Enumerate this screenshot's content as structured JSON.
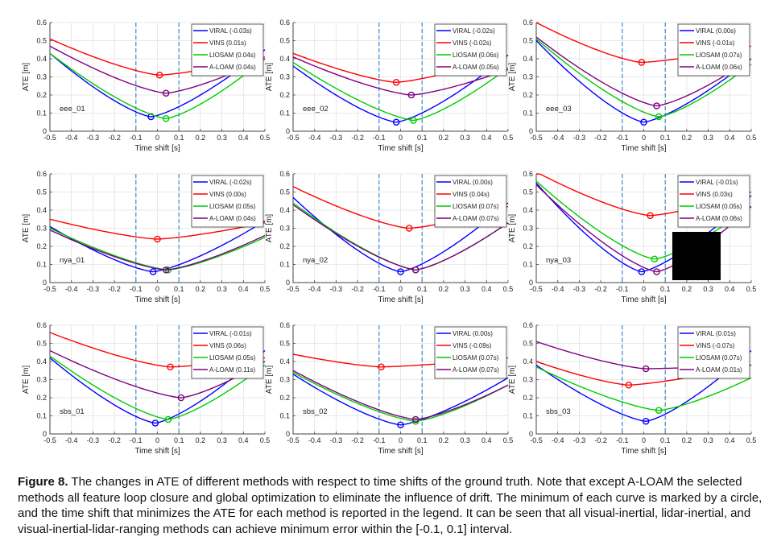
{
  "x_ticks": [
    "-0.5",
    "-0.4",
    "-0.3",
    "-0.2",
    "-0.1",
    "0",
    "0.1",
    "0.2",
    "0.3",
    "0.4",
    "0.5"
  ],
  "y_ticks": [
    "0",
    "0.1",
    "0.2",
    "0.3",
    "0.4",
    "0.5",
    "0.6"
  ],
  "colors": {
    "VIRAL": "#0000ff",
    "VINS": "#ff0000",
    "LIOSAM": "#00cc00",
    "A-LOAM": "#800080",
    "guide": "#2a7fd0"
  },
  "caption": {
    "label": "Figure 8.",
    "text": "The changes in ATE of different methods with respect to time shifts of the ground truth. Note that except A-LOAM the selected methods all feature loop closure and global optimization to eliminate the influence of drift. The minimum of each curve is marked by a circle, and the time shift that minimizes the ATE for each method is reported in the legend. It can be seen that all visual-inertial, lidar-inertial, and visual-inertial-lidar-ranging methods can achieve minimum error within the [-0.1, 0.1] interval."
  },
  "chart_data": [
    {
      "type": "line",
      "title": "eee_01",
      "xlabel": "Time shift [s]",
      "ylabel": "ATE [m]",
      "xlim": [
        -0.5,
        0.5
      ],
      "ylim": [
        0,
        0.6
      ],
      "guides": [
        -0.1,
        0.1
      ],
      "series": [
        {
          "name": "VIRAL",
          "legend": "VIRAL (-0.03s)",
          "min_x": -0.03,
          "min_y": 0.08,
          "y_at_-0.5": 0.43,
          "y_at_0.5": 0.45
        },
        {
          "name": "VINS",
          "legend": "VINS (0.01s)",
          "min_x": 0.01,
          "min_y": 0.31,
          "y_at_-0.5": 0.51,
          "y_at_0.5": 0.41
        },
        {
          "name": "LIOSAM",
          "legend": "LIOSAM (0.04s)",
          "min_x": 0.04,
          "min_y": 0.07,
          "y_at_-0.5": 0.43,
          "y_at_0.5": 0.4
        },
        {
          "name": "A-LOAM",
          "legend": "A-LOAM (0.04s)",
          "min_x": 0.04,
          "min_y": 0.21,
          "y_at_-0.5": 0.47,
          "y_at_0.5": 0.4
        }
      ]
    },
    {
      "type": "line",
      "title": "eee_02",
      "xlabel": "Time shift [s]",
      "ylabel": "ATE [m]",
      "xlim": [
        -0.5,
        0.5
      ],
      "ylim": [
        0,
        0.6
      ],
      "guides": [
        -0.1,
        0.1
      ],
      "series": [
        {
          "name": "VIRAL",
          "legend": "VIRAL (-0.02s)",
          "min_x": -0.02,
          "min_y": 0.05,
          "y_at_-0.5": 0.36,
          "y_at_0.5": 0.42
        },
        {
          "name": "VINS",
          "legend": "VINS (-0.02s)",
          "min_x": -0.02,
          "min_y": 0.27,
          "y_at_-0.5": 0.43,
          "y_at_0.5": 0.42
        },
        {
          "name": "LIOSAM",
          "legend": "LIOSAM (0.06s)",
          "min_x": 0.06,
          "min_y": 0.06,
          "y_at_-0.5": 0.38,
          "y_at_0.5": 0.35
        },
        {
          "name": "A-LOAM",
          "legend": "A-LOAM (0.05s)",
          "min_x": 0.05,
          "min_y": 0.2,
          "y_at_-0.5": 0.41,
          "y_at_0.5": 0.34
        }
      ]
    },
    {
      "type": "line",
      "title": "eee_03",
      "xlabel": "Time shift [s]",
      "ylabel": "ATE [m]",
      "xlim": [
        -0.5,
        0.5
      ],
      "ylim": [
        0,
        0.6
      ],
      "guides": [
        -0.1,
        0.1
      ],
      "series": [
        {
          "name": "VIRAL",
          "legend": "VIRAL (0.00s)",
          "min_x": 0.0,
          "min_y": 0.05,
          "y_at_-0.5": 0.5,
          "y_at_0.5": 0.4
        },
        {
          "name": "VINS",
          "legend": "VINS (-0.01s)",
          "min_x": -0.01,
          "min_y": 0.38,
          "y_at_-0.5": 0.6,
          "y_at_0.5": 0.47
        },
        {
          "name": "LIOSAM",
          "legend": "LIOSAM (0.07s)",
          "min_x": 0.07,
          "min_y": 0.08,
          "y_at_-0.5": 0.51,
          "y_at_0.5": 0.37
        },
        {
          "name": "A-LOAM",
          "legend": "A-LOAM (0.06s)",
          "min_x": 0.06,
          "min_y": 0.14,
          "y_at_-0.5": 0.52,
          "y_at_0.5": 0.4
        }
      ]
    },
    {
      "type": "line",
      "title": "nya_01",
      "xlabel": "Time shift [s]",
      "ylabel": "ATE [m]",
      "xlim": [
        -0.5,
        0.5
      ],
      "ylim": [
        0,
        0.6
      ],
      "guides": [
        -0.1,
        0.1
      ],
      "series": [
        {
          "name": "VIRAL",
          "legend": "VIRAL (-0.02s)",
          "min_x": -0.02,
          "min_y": 0.06,
          "y_at_-0.5": 0.31,
          "y_at_0.5": 0.34
        },
        {
          "name": "VINS",
          "legend": "VINS (0.00s)",
          "min_x": 0.0,
          "min_y": 0.24,
          "y_at_-0.5": 0.35,
          "y_at_0.5": 0.33
        },
        {
          "name": "LIOSAM",
          "legend": "LIOSAM (0.05s)",
          "min_x": 0.05,
          "min_y": 0.07,
          "y_at_-0.5": 0.3,
          "y_at_0.5": 0.25
        },
        {
          "name": "A-LOAM",
          "legend": "A-LOAM (0.04s)",
          "min_x": 0.04,
          "min_y": 0.07,
          "y_at_-0.5": 0.29,
          "y_at_0.5": 0.26
        }
      ]
    },
    {
      "type": "line",
      "title": "nya_02",
      "xlabel": "Time shift [s]",
      "ylabel": "ATE [m]",
      "xlim": [
        -0.5,
        0.5
      ],
      "ylim": [
        0,
        0.6
      ],
      "guides": [
        -0.1,
        0.1
      ],
      "series": [
        {
          "name": "VIRAL",
          "legend": "VIRAL (0.00s)",
          "min_x": 0.0,
          "min_y": 0.06,
          "y_at_-0.5": 0.47,
          "y_at_0.5": 0.44
        },
        {
          "name": "VINS",
          "legend": "VINS (0.04s)",
          "min_x": 0.04,
          "min_y": 0.3,
          "y_at_-0.5": 0.53,
          "y_at_0.5": 0.42
        },
        {
          "name": "LIOSAM",
          "legend": "LIOSAM (0.07s)",
          "min_x": 0.07,
          "min_y": 0.07,
          "y_at_-0.5": 0.44,
          "y_at_0.5": 0.33
        },
        {
          "name": "A-LOAM",
          "legend": "A-LOAM (0.07s)",
          "min_x": 0.07,
          "min_y": 0.07,
          "y_at_-0.5": 0.43,
          "y_at_0.5": 0.33
        }
      ]
    },
    {
      "type": "line",
      "title": "nya_03",
      "xlabel": "Time shift [s]",
      "ylabel": "ATE [m]",
      "xlim": [
        -0.5,
        0.5
      ],
      "ylim": [
        0,
        0.6
      ],
      "guides": [
        -0.1,
        0.1
      ],
      "series": [
        {
          "name": "VIRAL",
          "legend": "VIRAL (-0.01s)",
          "min_x": -0.01,
          "min_y": 0.06,
          "y_at_-0.5": 0.55,
          "y_at_0.5": 0.48
        },
        {
          "name": "VINS",
          "legend": "VINS (0.03s)",
          "min_x": 0.03,
          "min_y": 0.37,
          "y_at_-0.5": 0.61,
          "y_at_0.5": 0.5
        },
        {
          "name": "LIOSAM",
          "legend": "LIOSAM (0.05s)",
          "min_x": 0.05,
          "min_y": 0.13,
          "y_at_-0.5": 0.56,
          "y_at_0.5": 0.42
        },
        {
          "name": "A-LOAM",
          "legend": "A-LOAM (0.06s)",
          "min_x": 0.06,
          "min_y": 0.06,
          "y_at_-0.5": 0.54,
          "y_at_0.5": 0.42
        }
      ]
    },
    {
      "type": "line",
      "title": "sbs_01",
      "xlabel": "Time shift [s]",
      "ylabel": "ATE [m]",
      "xlim": [
        -0.5,
        0.5
      ],
      "ylim": [
        0,
        0.6
      ],
      "guides": [
        -0.1,
        0.1
      ],
      "series": [
        {
          "name": "VIRAL",
          "legend": "VIRAL (-0.01s)",
          "min_x": -0.01,
          "min_y": 0.06,
          "y_at_-0.5": 0.42,
          "y_at_0.5": 0.46
        },
        {
          "name": "VINS",
          "legend": "VINS (0.06s)",
          "min_x": 0.06,
          "min_y": 0.37,
          "y_at_-0.5": 0.56,
          "y_at_0.5": 0.42
        },
        {
          "name": "LIOSAM",
          "legend": "LIOSAM (0.05s)",
          "min_x": 0.05,
          "min_y": 0.08,
          "y_at_-0.5": 0.43,
          "y_at_0.5": 0.38
        },
        {
          "name": "A-LOAM",
          "legend": "A-LOAM (0.11s)",
          "min_x": 0.11,
          "min_y": 0.2,
          "y_at_-0.5": 0.46,
          "y_at_0.5": 0.4
        }
      ]
    },
    {
      "type": "line",
      "title": "sbs_02",
      "xlabel": "Time shift [s]",
      "ylabel": "ATE [m]",
      "xlim": [
        -0.5,
        0.5
      ],
      "ylim": [
        0,
        0.6
      ],
      "guides": [
        -0.1,
        0.1
      ],
      "series": [
        {
          "name": "VIRAL",
          "legend": "VIRAL (0.00s)",
          "min_x": 0.0,
          "min_y": 0.05,
          "y_at_-0.5": 0.33,
          "y_at_0.5": 0.31
        },
        {
          "name": "VINS",
          "legend": "VINS (-0.09s)",
          "min_x": -0.09,
          "min_y": 0.37,
          "y_at_-0.5": 0.44,
          "y_at_0.5": 0.42
        },
        {
          "name": "LIOSAM",
          "legend": "LIOSAM (0.07s)",
          "min_x": 0.07,
          "min_y": 0.07,
          "y_at_-0.5": 0.34,
          "y_at_0.5": 0.27
        },
        {
          "name": "A-LOAM",
          "legend": "A-LOAM (0.07s)",
          "min_x": 0.07,
          "min_y": 0.08,
          "y_at_-0.5": 0.35,
          "y_at_0.5": 0.27
        }
      ]
    },
    {
      "type": "line",
      "title": "sbs_03",
      "xlabel": "Time shift [s]",
      "ylabel": "ATE [m]",
      "xlim": [
        -0.5,
        0.5
      ],
      "ylim": [
        0,
        0.6
      ],
      "guides": [
        -0.1,
        0.1
      ],
      "series": [
        {
          "name": "VIRAL",
          "legend": "VIRAL (0.01s)",
          "min_x": 0.01,
          "min_y": 0.07,
          "y_at_-0.5": 0.38,
          "y_at_0.5": 0.46
        },
        {
          "name": "VINS",
          "legend": "VINS (-0.07s)",
          "min_x": -0.07,
          "min_y": 0.27,
          "y_at_-0.5": 0.4,
          "y_at_0.5": 0.38
        },
        {
          "name": "LIOSAM",
          "legend": "LIOSAM (0.07s)",
          "min_x": 0.07,
          "min_y": 0.13,
          "y_at_-0.5": 0.37,
          "y_at_0.5": 0.31
        },
        {
          "name": "A-LOAM",
          "legend": "A-LOAM (0.01s)",
          "min_x": 0.01,
          "min_y": 0.36,
          "y_at_-0.5": 0.51,
          "y_at_0.5": 0.38
        }
      ]
    }
  ]
}
